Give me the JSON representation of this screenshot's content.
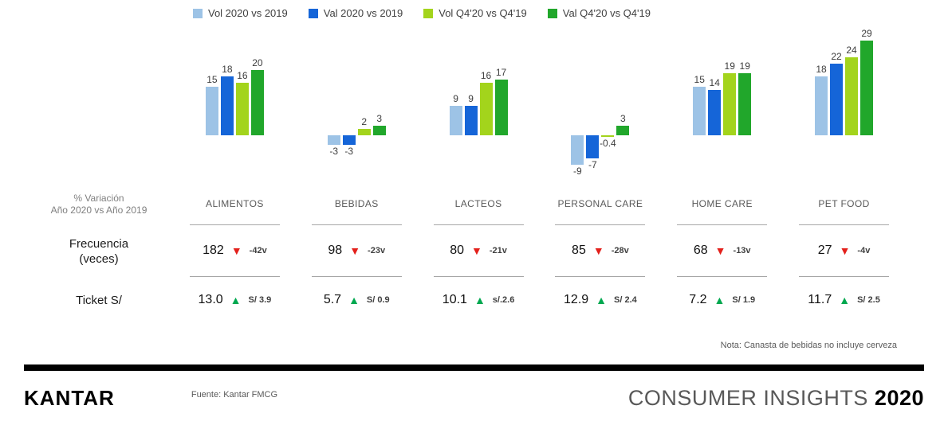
{
  "chart_data": {
    "type": "bar",
    "title": "",
    "categories": [
      "ALIMENTOS",
      "BEBIDAS",
      "LACTEOS",
      "PERSONAL CARE",
      "HOME CARE",
      "PET FOOD"
    ],
    "series": [
      {
        "name": "Vol 2020 vs 2019",
        "color": "#9DC3E6",
        "values": [
          15,
          -3,
          9,
          -9,
          15,
          18
        ]
      },
      {
        "name": "Val 2020 vs 2019",
        "color": "#1565D8",
        "values": [
          18,
          -3,
          9,
          -7,
          14,
          22
        ]
      },
      {
        "name": "Vol Q4'20 vs Q4'19",
        "color": "#A3D41C",
        "values": [
          16,
          2,
          16,
          -0.4,
          19,
          24
        ]
      },
      {
        "name": "Val Q4'20 vs Q4'19",
        "color": "#21A72B",
        "values": [
          20,
          3,
          17,
          3,
          19,
          29
        ]
      }
    ],
    "ylim": [
      -10,
      30
    ],
    "grid": false,
    "axes_visible": false,
    "legend_position": "top"
  },
  "left_labels": {
    "header_line1": "% Variación",
    "header_line2": "Año 2020 vs Año 2019",
    "frequency_line1": "Frecuencia",
    "frequency_line2": "(veces)",
    "ticket": "Ticket S/"
  },
  "table": {
    "frequency": {
      "values": [
        "182",
        "98",
        "80",
        "85",
        "68",
        "27"
      ],
      "deltas": [
        "-42v",
        "-23v",
        "-21v",
        "-28v",
        "-13v",
        "-4v"
      ],
      "trend": "down",
      "trend_color": "#E3201B"
    },
    "ticket": {
      "values": [
        "13.0",
        "5.7",
        "10.1",
        "12.9",
        "7.2",
        "11.7"
      ],
      "deltas": [
        "S/ 3.9",
        "S/ 0.9",
        "s/.2.6",
        "S/ 2.4",
        "S/ 1.9",
        "S/ 2.5"
      ],
      "trend": "up",
      "trend_color": "#00A84F"
    }
  },
  "note": "Nota: Canasta de bebidas no incluye cerveza",
  "footer": {
    "logo": "KANTAR",
    "source": "Fuente: Kantar FMCG",
    "title_light": "CONSUMER INSIGHTS",
    "title_bold": "2020"
  }
}
